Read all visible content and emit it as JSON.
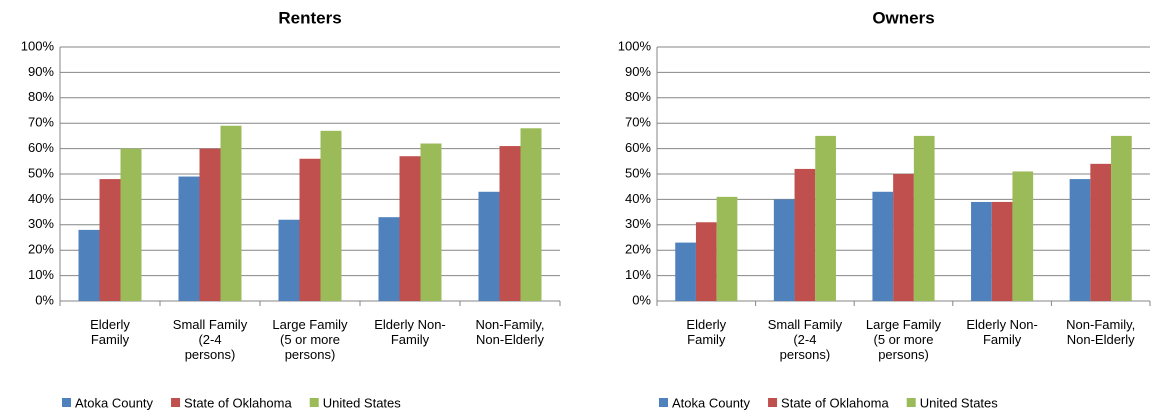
{
  "chart_data": [
    {
      "type": "bar",
      "title": "Renters",
      "categories": [
        "Elderly\nFamily",
        "Small Family\n(2-4\npersons)",
        "Large Family\n(5 or more\npersons)",
        "Elderly Non-\nFamily",
        "Non-Family,\nNon-Elderly"
      ],
      "series": [
        {
          "name": "Atoka County",
          "color": "#4f81bd",
          "values": [
            28,
            49,
            32,
            33,
            43
          ]
        },
        {
          "name": "State of Oklahoma",
          "color": "#c0504d",
          "values": [
            48,
            60,
            56,
            57,
            61
          ]
        },
        {
          "name": "United States",
          "color": "#9bbb59",
          "values": [
            60,
            69,
            67,
            62,
            68
          ]
        }
      ],
      "ylim": [
        0,
        100
      ],
      "yticks": [
        {
          "value": 0,
          "label": "0%"
        },
        {
          "value": 10,
          "label": "10%"
        },
        {
          "value": 20,
          "label": "20%"
        },
        {
          "value": 30,
          "label": "30%"
        },
        {
          "value": 40,
          "label": "40%"
        },
        {
          "value": 50,
          "label": "50%"
        },
        {
          "value": 60,
          "label": "60%"
        },
        {
          "value": 70,
          "label": "70%"
        },
        {
          "value": 80,
          "label": "80%"
        },
        {
          "value": 90,
          "label": "90%"
        },
        {
          "value": 100,
          "label": "100%"
        }
      ],
      "grid": true
    },
    {
      "type": "bar",
      "title": "Owners",
      "categories": [
        "Elderly\nFamily",
        "Small Family\n(2-4\npersons)",
        "Large Family\n(5 or more\npersons)",
        "Elderly Non-\nFamily",
        "Non-Family,\nNon-Elderly"
      ],
      "series": [
        {
          "name": "Atoka County",
          "color": "#4f81bd",
          "values": [
            23,
            40,
            43,
            39,
            48
          ]
        },
        {
          "name": "State of Oklahoma",
          "color": "#c0504d",
          "values": [
            31,
            52,
            50,
            39,
            54
          ]
        },
        {
          "name": "United States",
          "color": "#9bbb59",
          "values": [
            41,
            65,
            65,
            51,
            65
          ]
        }
      ],
      "ylim": [
        0,
        100
      ],
      "yticks": [
        {
          "value": 0,
          "label": "0%"
        },
        {
          "value": 10,
          "label": "10%"
        },
        {
          "value": 20,
          "label": "20%"
        },
        {
          "value": 30,
          "label": "30%"
        },
        {
          "value": 40,
          "label": "40%"
        },
        {
          "value": 50,
          "label": "50%"
        },
        {
          "value": 60,
          "label": "60%"
        },
        {
          "value": 70,
          "label": "70%"
        },
        {
          "value": 80,
          "label": "80%"
        },
        {
          "value": 90,
          "label": "90%"
        },
        {
          "value": 100,
          "label": "100%"
        }
      ],
      "grid": true
    }
  ]
}
